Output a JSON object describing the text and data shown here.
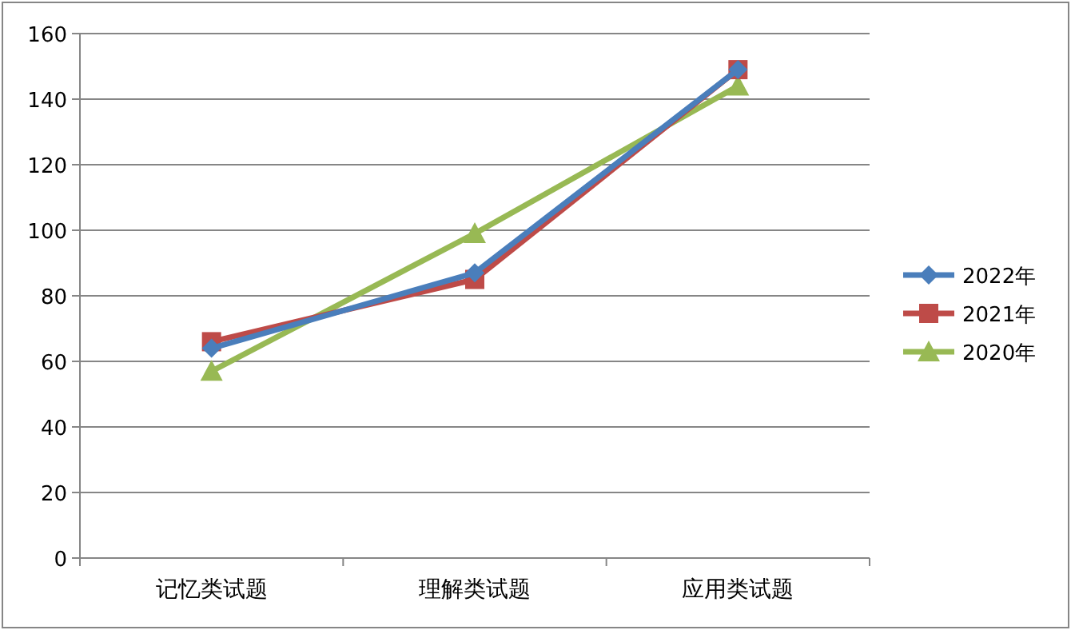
{
  "chart_data": {
    "type": "line",
    "categories": [
      "记忆类试题",
      "理解类试题",
      "应用类试题"
    ],
    "series": [
      {
        "name": "2022年",
        "color": "#4a7ebb",
        "marker": "diamond",
        "values": [
          64,
          87,
          149
        ]
      },
      {
        "name": "2021年",
        "color": "#be4b48",
        "marker": "square",
        "values": [
          66,
          85,
          149
        ]
      },
      {
        "name": "2020年",
        "color": "#98b954",
        "marker": "triangle",
        "values": [
          57,
          99,
          144
        ]
      }
    ],
    "ylim": [
      0,
      160
    ],
    "yticks": [
      0,
      20,
      40,
      60,
      80,
      100,
      120,
      140,
      160
    ],
    "grid": "y",
    "legend": "right"
  }
}
